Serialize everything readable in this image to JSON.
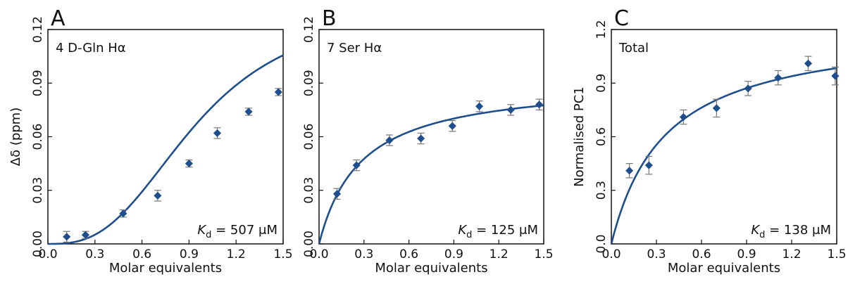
{
  "colors": {
    "series": "#1f4e8c",
    "errorbar": "#777777",
    "frame": "#111111"
  },
  "chart_data": [
    {
      "type": "scatter",
      "panel_letter": "A",
      "annotation": "4 D-Gln Hα",
      "kd_symbol": "K",
      "kd_sub": "d",
      "kd_value": "= 507 μM",
      "xlabel": "Molar equivalents",
      "ylabel": "Δδ (ppm)",
      "xlim": [
        0.0,
        1.5
      ],
      "ylim": [
        0.0,
        0.12
      ],
      "xticks": [
        "0.0",
        "0.3",
        "0.6",
        "0.9",
        "1.2",
        "1.5"
      ],
      "yticks": [
        "0.00",
        "0.03",
        "0.06",
        "0.09",
        "0.12"
      ],
      "fit_model": "sigmoid",
      "fit_params": {
        "max": 0.135,
        "half": 0.95,
        "n": 2.8
      },
      "points": [
        {
          "x": 0.12,
          "y": 0.004,
          "err": 0.003
        },
        {
          "x": 0.24,
          "y": 0.005,
          "err": 0.002
        },
        {
          "x": 0.48,
          "y": 0.017,
          "err": 0.002
        },
        {
          "x": 0.7,
          "y": 0.027,
          "err": 0.003
        },
        {
          "x": 0.9,
          "y": 0.045,
          "err": 0.002
        },
        {
          "x": 1.08,
          "y": 0.062,
          "err": 0.003
        },
        {
          "x": 1.28,
          "y": 0.074,
          "err": 0.002
        },
        {
          "x": 1.47,
          "y": 0.085,
          "err": 0.002
        }
      ]
    },
    {
      "type": "scatter",
      "panel_letter": "B",
      "annotation": "7 Ser Hα",
      "kd_symbol": "K",
      "kd_sub": "d",
      "kd_value": "= 125 μM",
      "xlabel": "Molar equivalents",
      "ylabel": "",
      "xlim": [
        0.0,
        1.5
      ],
      "ylim": [
        0.0,
        0.12
      ],
      "xticks": [
        "0.0",
        "0.3",
        "0.6",
        "0.9",
        "1.2",
        "1.5"
      ],
      "yticks": [
        "0.00",
        "0.03",
        "0.06",
        "0.09",
        "0.12"
      ],
      "fit_model": "hyperbola",
      "fit_params": {
        "max": 0.092,
        "half": 0.28
      },
      "points": [
        {
          "x": 0.12,
          "y": 0.028,
          "err": 0.003
        },
        {
          "x": 0.25,
          "y": 0.044,
          "err": 0.003
        },
        {
          "x": 0.47,
          "y": 0.058,
          "err": 0.003
        },
        {
          "x": 0.68,
          "y": 0.059,
          "err": 0.003
        },
        {
          "x": 0.89,
          "y": 0.066,
          "err": 0.003
        },
        {
          "x": 1.07,
          "y": 0.077,
          "err": 0.003
        },
        {
          "x": 1.28,
          "y": 0.075,
          "err": 0.003
        },
        {
          "x": 1.47,
          "y": 0.078,
          "err": 0.003
        }
      ]
    },
    {
      "type": "scatter",
      "panel_letter": "C",
      "annotation": "Total",
      "kd_symbol": "K",
      "kd_sub": "d",
      "kd_value": "= 138 μM",
      "xlabel": "Molar equivalents",
      "ylabel": "Normalised PC1",
      "xlim": [
        0.0,
        1.5
      ],
      "ylim": [
        0.0,
        1.2
      ],
      "xticks": [
        "0.0",
        "0.3",
        "0.6",
        "0.9",
        "1.2",
        "1.5"
      ],
      "yticks": [
        "0.0",
        "0.3",
        "0.6",
        "0.9",
        "1.2"
      ],
      "fit_model": "hyperbola",
      "fit_params": {
        "max": 1.22,
        "half": 0.36
      },
      "points": [
        {
          "x": 0.12,
          "y": 0.41,
          "err": 0.04
        },
        {
          "x": 0.25,
          "y": 0.44,
          "err": 0.05
        },
        {
          "x": 0.48,
          "y": 0.71,
          "err": 0.04
        },
        {
          "x": 0.7,
          "y": 0.76,
          "err": 0.05
        },
        {
          "x": 0.91,
          "y": 0.87,
          "err": 0.04
        },
        {
          "x": 1.11,
          "y": 0.93,
          "err": 0.04
        },
        {
          "x": 1.31,
          "y": 1.01,
          "err": 0.04
        },
        {
          "x": 1.49,
          "y": 0.94,
          "err": 0.05
        }
      ]
    }
  ]
}
